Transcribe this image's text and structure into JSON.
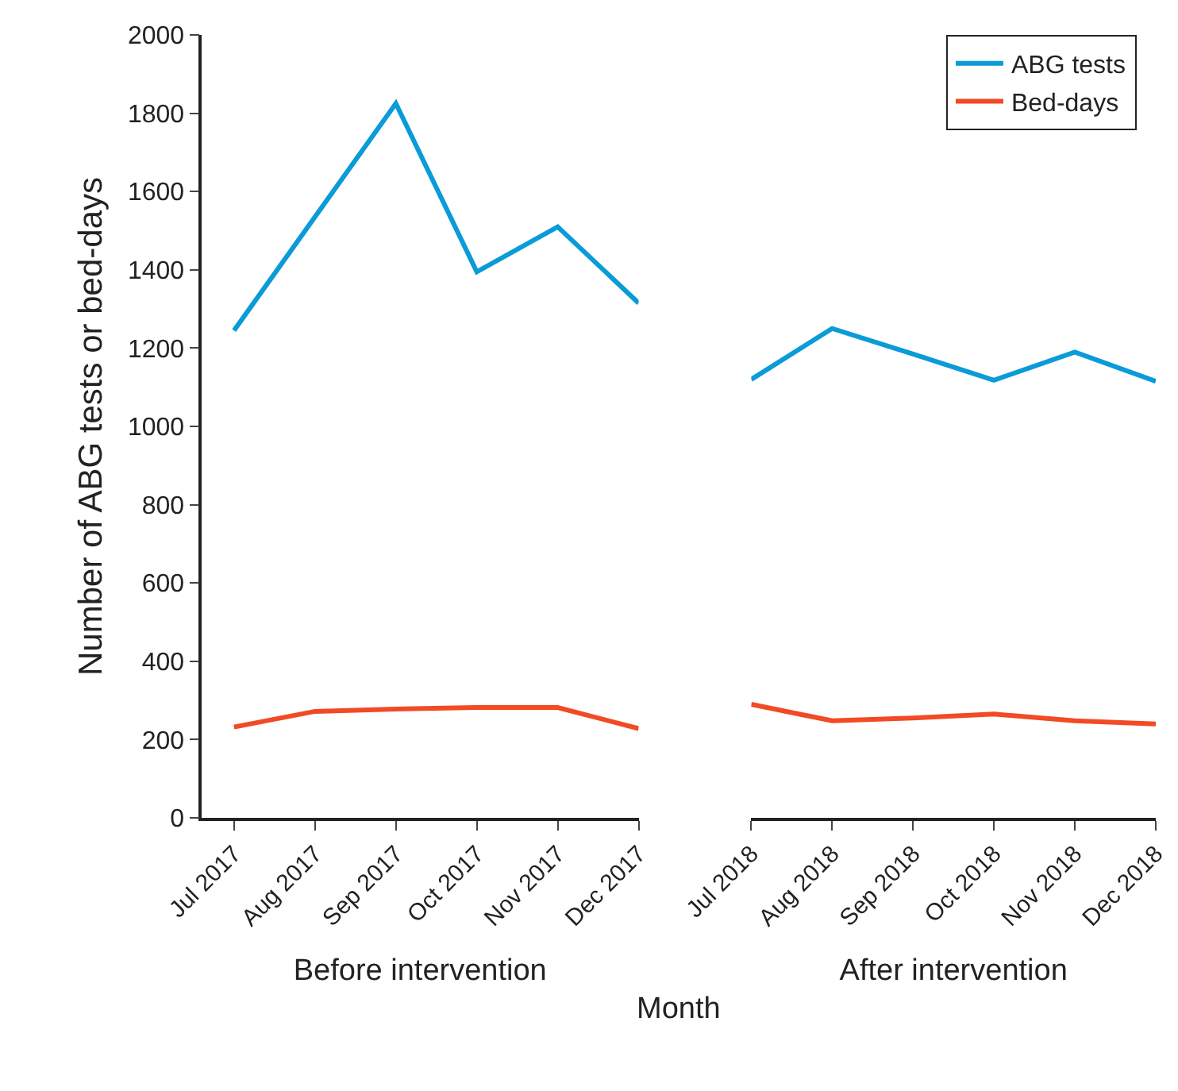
{
  "chart_data": [
    {
      "type": "line",
      "title": null,
      "xlabel": "Before intervention",
      "ylabel": "Number of ABG tests or bed-days",
      "categories": [
        "Jul 2017",
        "Aug 2017",
        "Sep 2017",
        "Oct 2017",
        "Nov 2017",
        "Dec 2017"
      ],
      "series": [
        {
          "color": "#0a9bd8",
          "values": [
            1245,
            1535,
            1825,
            1395,
            1510,
            1315
          ]
        },
        {
          "color": "#f24a24",
          "values": [
            232,
            272,
            278,
            282,
            282,
            228
          ]
        }
      ],
      "ylim": [
        0,
        2000
      ],
      "yticks": [
        0,
        200,
        400,
        600,
        800,
        1000,
        1200,
        1400,
        1600,
        1800,
        2000
      ],
      "marker": "none",
      "line_style": "solid",
      "annotations": [
        "Month"
      ]
    },
    {
      "type": "line",
      "xlabel": "After intervention",
      "categories": [
        "Jul 2018",
        "Aug 2018",
        "Sep 2018",
        "Oct 2018",
        "Nov 2018",
        "Dec 2018"
      ],
      "series": [
        {
          "name": "ABG tests",
          "color": "#0a9bd8",
          "values": [
            1120,
            1250,
            1185,
            1118,
            1190,
            1115
          ]
        },
        {
          "name": "Bed-days",
          "color": "#f24a24",
          "values": [
            290,
            248,
            255,
            265,
            248,
            240
          ]
        }
      ],
      "ylim": [
        0,
        2000
      ],
      "tick_labels": "x",
      "legend": "top right",
      "marker": "none",
      "line_style": "solid"
    }
  ]
}
